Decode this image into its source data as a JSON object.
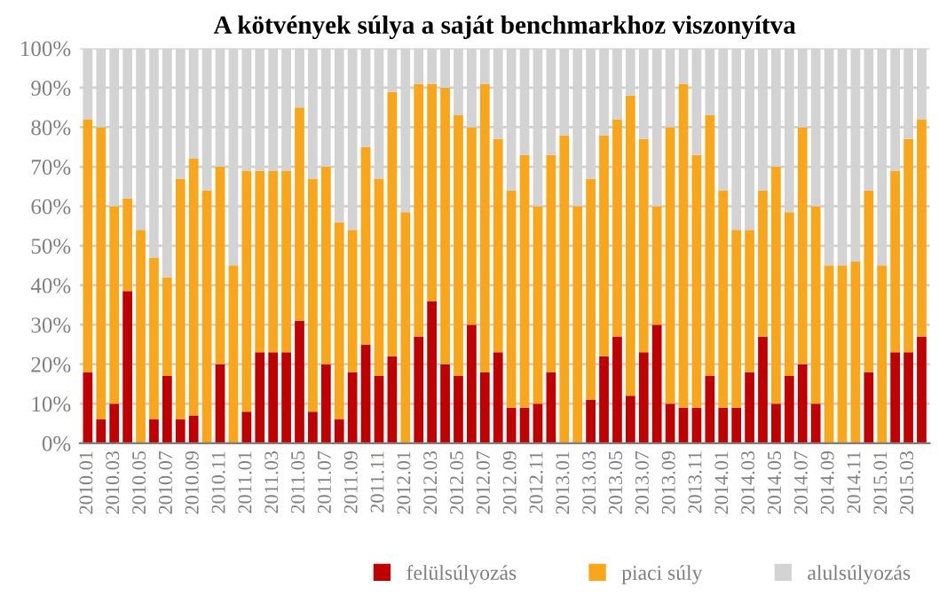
{
  "chart_data": {
    "type": "bar",
    "stacked": true,
    "title": "A kötvények súlya a saját benchmarkhoz viszonyítva",
    "categories": [
      "2010.01",
      null,
      "2010.03",
      null,
      "2010.05",
      null,
      "2010.07",
      null,
      "2010.09",
      null,
      "2010.11",
      null,
      "2011.01",
      null,
      "2011.03",
      null,
      "2011.05",
      null,
      "2011.07",
      null,
      "2011.09",
      null,
      "2011.11",
      null,
      "2012.01",
      null,
      "2012.03",
      null,
      "2012.05",
      null,
      "2012.07",
      null,
      "2012.09",
      null,
      "2012.11",
      null,
      "2013.01",
      null,
      "2013.03",
      null,
      "2013.05",
      null,
      "2013.07",
      null,
      "2013.09",
      null,
      "2013.11",
      null,
      "2014.01",
      null,
      "2014.03",
      null,
      "2014.05",
      null,
      "2014.07",
      null,
      "2014.09",
      null,
      "2014.11",
      null,
      "2015.01",
      null,
      "2015.03",
      null
    ],
    "series": [
      {
        "name": "felülsúlyozás",
        "color": "#c00000",
        "values": [
          18,
          6,
          10,
          38.5,
          0,
          6,
          17,
          6,
          7,
          0,
          20,
          0,
          8,
          23,
          23,
          23,
          31,
          8,
          20,
          6,
          18,
          25,
          17,
          22,
          0,
          27,
          36,
          20,
          17,
          30,
          18,
          23,
          9,
          9,
          10,
          18,
          0,
          0,
          11,
          22,
          27,
          12,
          23,
          30,
          10,
          9,
          9,
          17,
          9,
          9,
          18,
          27,
          10,
          17,
          20,
          10,
          0,
          0,
          0,
          18,
          0,
          23,
          23,
          27
        ]
      },
      {
        "name": "piaci súly",
        "color": "#f9a61a",
        "values": [
          64,
          74,
          50,
          23.5,
          54,
          41,
          25,
          61,
          65,
          64,
          50,
          45,
          61,
          46,
          46,
          46,
          54,
          59,
          50,
          50,
          36,
          50,
          50,
          67,
          58.5,
          64,
          55,
          70,
          66,
          50,
          73,
          54,
          55,
          64,
          50,
          55,
          78,
          60,
          56,
          56,
          55,
          76,
          54,
          30,
          70,
          82,
          64,
          66,
          55,
          45,
          36,
          37,
          60,
          41.5,
          60,
          50,
          45,
          45,
          46,
          46,
          45,
          46,
          54,
          55
        ]
      },
      {
        "name": "alulsúlyozás",
        "color": "#d3d3d3",
        "values": [
          18,
          20,
          40,
          38,
          46,
          53,
          58,
          33,
          28,
          36,
          30,
          55,
          31,
          31,
          31,
          31,
          15,
          33,
          30,
          44,
          46,
          25,
          33,
          11,
          41.5,
          9,
          9,
          10,
          17,
          20,
          9,
          23,
          36,
          27,
          40,
          27,
          22,
          40,
          33,
          22,
          18,
          12,
          23,
          40,
          20,
          9,
          27,
          17,
          36,
          46,
          46,
          36,
          30,
          41.5,
          20,
          40,
          55,
          55,
          54,
          36,
          55,
          31,
          23,
          18
        ]
      }
    ],
    "ylim": [
      0,
      100
    ],
    "yticks": [
      {
        "value": 0,
        "label": "0%"
      },
      {
        "value": 10,
        "label": "10%"
      },
      {
        "value": 20,
        "label": "20%"
      },
      {
        "value": 30,
        "label": "30%"
      },
      {
        "value": 40,
        "label": "40%"
      },
      {
        "value": 50,
        "label": "50%"
      },
      {
        "value": 60,
        "label": "60%"
      },
      {
        "value": 70,
        "label": "70%"
      },
      {
        "value": 80,
        "label": "80%"
      },
      {
        "value": 90,
        "label": "90%"
      },
      {
        "value": 100,
        "label": "100%"
      }
    ],
    "grid": "y",
    "legend": "bottom right"
  }
}
